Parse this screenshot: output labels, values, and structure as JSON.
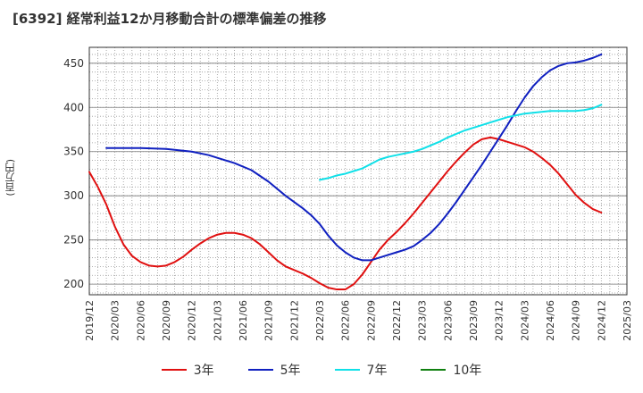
{
  "chart_data": {
    "type": "line",
    "title": "[6392]  経常利益12か月移動合計の標準偏差の推移",
    "ylabel": "(百万円)",
    "xlabel": "",
    "ylim": [
      188,
      468
    ],
    "yticks": [
      200,
      250,
      300,
      350,
      400,
      450
    ],
    "xticks": [
      "2019/12",
      "2020/03",
      "2020/06",
      "2020/09",
      "2020/12",
      "2021/03",
      "2021/06",
      "2021/09",
      "2021/12",
      "2022/03",
      "2022/06",
      "2022/09",
      "2022/12",
      "2023/03",
      "2023/06",
      "2023/09",
      "2023/12",
      "2024/03",
      "2024/06",
      "2024/09",
      "2024/12",
      "2025/03"
    ],
    "grid": true,
    "legend_position": "bottom",
    "series": [
      {
        "name": "3年",
        "color": "#e01010",
        "points": [
          [
            "2019/12",
            327
          ],
          [
            "2020/01",
            310
          ],
          [
            "2020/02",
            290
          ],
          [
            "2020/03",
            265
          ],
          [
            "2020/04",
            245
          ],
          [
            "2020/05",
            232
          ],
          [
            "2020/06",
            225
          ],
          [
            "2020/07",
            221
          ],
          [
            "2020/08",
            220
          ],
          [
            "2020/09",
            221
          ],
          [
            "2020/10",
            225
          ],
          [
            "2020/11",
            231
          ],
          [
            "2020/12",
            239
          ],
          [
            "2021/01",
            246
          ],
          [
            "2021/02",
            252
          ],
          [
            "2021/03",
            256
          ],
          [
            "2021/04",
            258
          ],
          [
            "2021/05",
            258
          ],
          [
            "2021/06",
            256
          ],
          [
            "2021/07",
            252
          ],
          [
            "2021/08",
            245
          ],
          [
            "2021/09",
            236
          ],
          [
            "2021/10",
            227
          ],
          [
            "2021/11",
            220
          ],
          [
            "2021/12",
            216
          ],
          [
            "2022/01",
            212
          ],
          [
            "2022/02",
            207
          ],
          [
            "2022/03",
            201
          ],
          [
            "2022/04",
            196
          ],
          [
            "2022/05",
            194
          ],
          [
            "2022/06",
            194
          ],
          [
            "2022/07",
            200
          ],
          [
            "2022/08",
            211
          ],
          [
            "2022/09",
            225
          ],
          [
            "2022/10",
            239
          ],
          [
            "2022/11",
            250
          ],
          [
            "2022/12",
            259
          ],
          [
            "2023/01",
            269
          ],
          [
            "2023/02",
            280
          ],
          [
            "2023/03",
            292
          ],
          [
            "2023/04",
            304
          ],
          [
            "2023/05",
            316
          ],
          [
            "2023/06",
            328
          ],
          [
            "2023/07",
            339
          ],
          [
            "2023/08",
            349
          ],
          [
            "2023/09",
            358
          ],
          [
            "2023/10",
            364
          ],
          [
            "2023/11",
            366
          ],
          [
            "2023/12",
            364
          ],
          [
            "2024/01",
            361
          ],
          [
            "2024/02",
            358
          ],
          [
            "2024/03",
            355
          ],
          [
            "2024/04",
            350
          ],
          [
            "2024/05",
            343
          ],
          [
            "2024/06",
            335
          ],
          [
            "2024/07",
            325
          ],
          [
            "2024/08",
            313
          ],
          [
            "2024/09",
            301
          ],
          [
            "2024/10",
            292
          ],
          [
            "2024/11",
            285
          ],
          [
            "2024/12",
            281
          ]
        ]
      },
      {
        "name": "5年",
        "color": "#1020c0",
        "points": [
          [
            "2020/02",
            354
          ],
          [
            "2020/06",
            354
          ],
          [
            "2020/09",
            353
          ],
          [
            "2020/12",
            350
          ],
          [
            "2021/02",
            346
          ],
          [
            "2021/03",
            343
          ],
          [
            "2021/05",
            337
          ],
          [
            "2021/07",
            329
          ],
          [
            "2021/09",
            316
          ],
          [
            "2021/11",
            300
          ],
          [
            "2022/01",
            286
          ],
          [
            "2022/02",
            278
          ],
          [
            "2022/03",
            268
          ],
          [
            "2022/04",
            255
          ],
          [
            "2022/05",
            244
          ],
          [
            "2022/06",
            236
          ],
          [
            "2022/07",
            230
          ],
          [
            "2022/08",
            227
          ],
          [
            "2022/09",
            227
          ],
          [
            "2022/10",
            230
          ],
          [
            "2022/11",
            233
          ],
          [
            "2022/12",
            236
          ],
          [
            "2023/01",
            239
          ],
          [
            "2023/02",
            243
          ],
          [
            "2023/03",
            250
          ],
          [
            "2023/04",
            258
          ],
          [
            "2023/05",
            268
          ],
          [
            "2023/06",
            280
          ],
          [
            "2023/07",
            293
          ],
          [
            "2023/08",
            307
          ],
          [
            "2023/09",
            321
          ],
          [
            "2023/10",
            335
          ],
          [
            "2023/11",
            350
          ],
          [
            "2023/12",
            365
          ],
          [
            "2024/01",
            380
          ],
          [
            "2024/02",
            396
          ],
          [
            "2024/03",
            411
          ],
          [
            "2024/04",
            424
          ],
          [
            "2024/05",
            434
          ],
          [
            "2024/06",
            442
          ],
          [
            "2024/07",
            447
          ],
          [
            "2024/08",
            450
          ],
          [
            "2024/09",
            451
          ],
          [
            "2024/10",
            453
          ],
          [
            "2024/11",
            456
          ],
          [
            "2024/12",
            460
          ]
        ]
      },
      {
        "name": "7年",
        "color": "#10e0e8",
        "points": [
          [
            "2022/03",
            318
          ],
          [
            "2022/04",
            320
          ],
          [
            "2022/05",
            323
          ],
          [
            "2022/06",
            325
          ],
          [
            "2022/07",
            328
          ],
          [
            "2022/08",
            331
          ],
          [
            "2022/09",
            336
          ],
          [
            "2022/10",
            341
          ],
          [
            "2022/11",
            344
          ],
          [
            "2022/12",
            346
          ],
          [
            "2023/01",
            348
          ],
          [
            "2023/02",
            350
          ],
          [
            "2023/03",
            353
          ],
          [
            "2023/04",
            357
          ],
          [
            "2023/05",
            361
          ],
          [
            "2023/06",
            366
          ],
          [
            "2023/07",
            370
          ],
          [
            "2023/08",
            374
          ],
          [
            "2023/09",
            377
          ],
          [
            "2023/10",
            380
          ],
          [
            "2023/11",
            383
          ],
          [
            "2023/12",
            386
          ],
          [
            "2024/01",
            389
          ],
          [
            "2024/02",
            391
          ],
          [
            "2024/03",
            393
          ],
          [
            "2024/04",
            394
          ],
          [
            "2024/05",
            395
          ],
          [
            "2024/06",
            396
          ],
          [
            "2024/07",
            396
          ],
          [
            "2024/08",
            396
          ],
          [
            "2024/09",
            396
          ],
          [
            "2024/10",
            397
          ],
          [
            "2024/11",
            399
          ],
          [
            "2024/12",
            403
          ]
        ]
      },
      {
        "name": "10年",
        "color": "#108010",
        "points": []
      }
    ]
  }
}
